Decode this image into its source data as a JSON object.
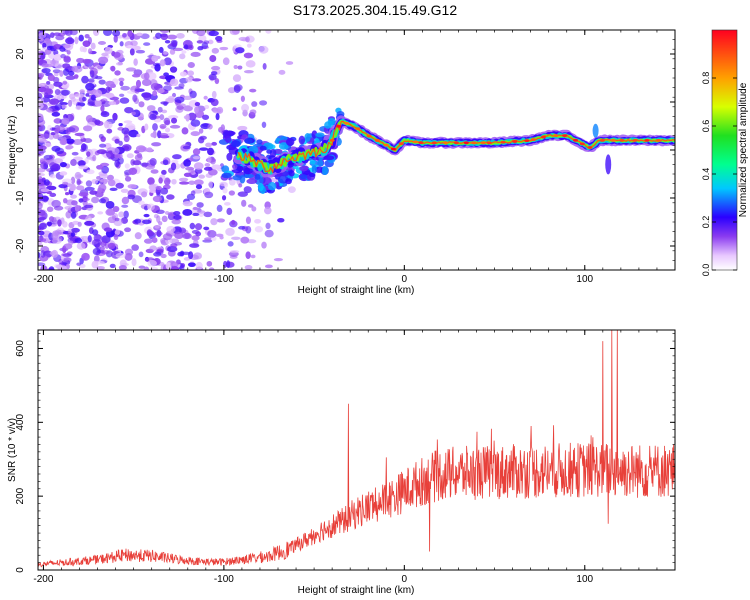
{
  "title": "S173.2025.304.15.49.G12",
  "colors": {
    "snr_line": "#e8403a",
    "spectrogram_base": "#8a3cf0"
  },
  "chart_data": [
    {
      "type": "heatmap",
      "name": "spectrogram",
      "xlabel": "Height of straight line (km)",
      "ylabel": "Frequency (Hz)",
      "xlim": [
        -203,
        150
      ],
      "ylim": [
        -25,
        25
      ],
      "xticks": [
        -200,
        -100,
        0,
        100
      ],
      "yticks": [
        20,
        10,
        0,
        -10,
        -20
      ],
      "xtick_labels": [
        "-200",
        "-100",
        "0",
        "100"
      ],
      "ytick_labels": [
        "20",
        "10",
        "0",
        "-10",
        "-20"
      ],
      "colorbar": {
        "label": "Normalized spectral amplitude",
        "range": [
          0.0,
          1.0
        ],
        "ticks": [
          0.0,
          0.2,
          0.4,
          0.6,
          0.8
        ],
        "tick_labels": [
          "0.0",
          "0.2",
          "0.4",
          "0.6",
          "0.8"
        ]
      },
      "ridge": {
        "x": [
          -92,
          -85,
          -75,
          -65,
          -55,
          -45,
          -40,
          -35,
          -28,
          -20,
          -10,
          -5,
          0,
          10,
          30,
          50,
          70,
          80,
          90,
          100,
          103,
          108,
          120,
          150
        ],
        "y": [
          -1,
          -2,
          -4,
          -2,
          -1,
          0,
          2,
          6,
          5,
          3,
          1,
          0,
          2,
          1.5,
          1.5,
          1.5,
          2,
          3,
          3,
          1,
          0.5,
          2,
          2,
          2
        ]
      }
    },
    {
      "type": "line",
      "name": "snr",
      "xlabel": "Height of straight line (km)",
      "ylabel": "SNR (10 * v/v)",
      "xlim": [
        -203,
        150
      ],
      "ylim": [
        0,
        650
      ],
      "xticks": [
        -200,
        -100,
        0,
        100
      ],
      "yticks": [
        0,
        200,
        400,
        600
      ],
      "xtick_labels": [
        "-200",
        "-100",
        "0",
        "100"
      ],
      "ytick_labels": [
        "0",
        "200",
        "400",
        "600"
      ],
      "trend": {
        "x": [
          -203,
          -190,
          -170,
          -155,
          -140,
          -125,
          -110,
          -100,
          -90,
          -75,
          -65,
          -55,
          -45,
          -35,
          -25,
          -15,
          -5,
          0,
          10,
          20,
          30,
          50,
          70,
          90,
          110,
          130,
          150
        ],
        "y": [
          15,
          20,
          28,
          40,
          38,
          28,
          22,
          22,
          28,
          38,
          55,
          80,
          110,
          130,
          160,
          180,
          200,
          215,
          240,
          258,
          262,
          265,
          268,
          270,
          272,
          268,
          270
        ]
      },
      "spikes": [
        {
          "x": -31,
          "y": 450
        },
        {
          "x": 110,
          "y": 620
        },
        {
          "x": 115,
          "y": 650
        },
        {
          "x": 118,
          "y": 650
        },
        {
          "x": 14,
          "y": 50
        },
        {
          "x": 113,
          "y": 125
        }
      ]
    }
  ]
}
